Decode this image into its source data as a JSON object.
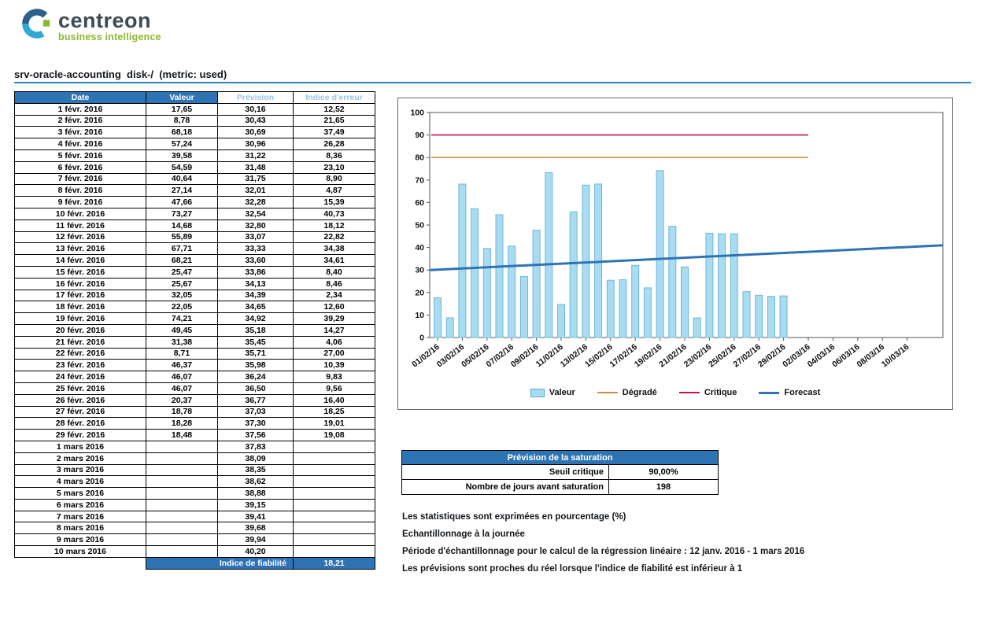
{
  "logo": {
    "brand": "centreon",
    "tagline": "business intelligence"
  },
  "header": {
    "title": "srv-oracle-accounting  disk-/  (metric: used)"
  },
  "colors": {
    "header_blue": "#2E74B5",
    "light_header_text": "#9DC3E6",
    "title_rule": "#2F83B5",
    "bar_fill": "#A9DCF0",
    "bar_stroke": "#6FB7DA",
    "degrade": "#C9913D",
    "critique": "#C0134F",
    "forecast": "#2E74B5",
    "logo_green": "#8CB92E"
  },
  "forecast_table": {
    "headers": [
      "Date",
      "Valeur",
      "Prévision",
      "Indice d'erreur"
    ],
    "rows": [
      [
        "1 févr. 2016",
        "17,65",
        "30,16",
        "12,52"
      ],
      [
        "2 févr. 2016",
        "8,78",
        "30,43",
        "21,65"
      ],
      [
        "3 févr. 2016",
        "68,18",
        "30,69",
        "37,49"
      ],
      [
        "4 févr. 2016",
        "57,24",
        "30,96",
        "26,28"
      ],
      [
        "5 févr. 2016",
        "39,58",
        "31,22",
        "8,36"
      ],
      [
        "6 févr. 2016",
        "54,59",
        "31,48",
        "23,10"
      ],
      [
        "7 févr. 2016",
        "40,64",
        "31,75",
        "8,90"
      ],
      [
        "8 févr. 2016",
        "27,14",
        "32,01",
        "4,87"
      ],
      [
        "9 févr. 2016",
        "47,66",
        "32,28",
        "15,39"
      ],
      [
        "10 févr. 2016",
        "73,27",
        "32,54",
        "40,73"
      ],
      [
        "11 févr. 2016",
        "14,68",
        "32,80",
        "18,12"
      ],
      [
        "12 févr. 2016",
        "55,89",
        "33,07",
        "22,82"
      ],
      [
        "13 févr. 2016",
        "67,71",
        "33,33",
        "34,38"
      ],
      [
        "14 févr. 2016",
        "68,21",
        "33,60",
        "34,61"
      ],
      [
        "15 févr. 2016",
        "25,47",
        "33,86",
        "8,40"
      ],
      [
        "16 févr. 2016",
        "25,67",
        "34,13",
        "8,46"
      ],
      [
        "17 févr. 2016",
        "32,05",
        "34,39",
        "2,34"
      ],
      [
        "18 févr. 2016",
        "22,05",
        "34,65",
        "12,60"
      ],
      [
        "19 févr. 2016",
        "74,21",
        "34,92",
        "39,29"
      ],
      [
        "20 févr. 2016",
        "49,45",
        "35,18",
        "14,27"
      ],
      [
        "21 févr. 2016",
        "31,38",
        "35,45",
        "4,06"
      ],
      [
        "22 févr. 2016",
        "8,71",
        "35,71",
        "27,00"
      ],
      [
        "23 févr. 2016",
        "46,37",
        "35,98",
        "10,39"
      ],
      [
        "24 févr. 2016",
        "46,07",
        "36,24",
        "9,83"
      ],
      [
        "25 févr. 2016",
        "46,07",
        "36,50",
        "9,56"
      ],
      [
        "26 févr. 2016",
        "20,37",
        "36,77",
        "16,40"
      ],
      [
        "27 févr. 2016",
        "18,78",
        "37,03",
        "18,25"
      ],
      [
        "28 févr. 2016",
        "18,28",
        "37,30",
        "19,01"
      ],
      [
        "29 févr. 2016",
        "18,48",
        "37,56",
        "19,08"
      ],
      [
        "1 mars 2016",
        "",
        "37,83",
        ""
      ],
      [
        "2 mars 2016",
        "",
        "38,09",
        ""
      ],
      [
        "3 mars 2016",
        "",
        "38,35",
        ""
      ],
      [
        "4 mars 2016",
        "",
        "38,62",
        ""
      ],
      [
        "5 mars 2016",
        "",
        "38,88",
        ""
      ],
      [
        "6 mars 2016",
        "",
        "39,15",
        ""
      ],
      [
        "7 mars 2016",
        "",
        "39,41",
        ""
      ],
      [
        "8 mars 2016",
        "",
        "39,68",
        ""
      ],
      [
        "9 mars 2016",
        "",
        "39,94",
        ""
      ],
      [
        "10 mars 2016",
        "",
        "40,20",
        ""
      ]
    ],
    "footer_label": "Indice de fiabilité",
    "footer_value": "18,21"
  },
  "chart_data": {
    "type": "bar",
    "title": "",
    "xlabel": "",
    "ylabel": "",
    "ylim": [
      0,
      100
    ],
    "y_tick_step": 10,
    "x_tick_step_days": 2,
    "x_tick_labels": [
      "01/02/16",
      "03/02/16",
      "05/02/16",
      "07/02/16",
      "09/02/16",
      "11/02/16",
      "13/02/16",
      "15/02/16",
      "17/02/16",
      "19/02/16",
      "21/02/16",
      "23/02/16",
      "25/02/16",
      "27/02/16",
      "29/02/16",
      "02/03/16",
      "04/03/16",
      "06/03/16",
      "08/03/16",
      "10/03/16"
    ],
    "series": [
      {
        "name": "Valeur",
        "type": "bar",
        "color": "#A9DCF0",
        "stroke": "#6FB7DA",
        "values": [
          17.65,
          8.78,
          68.18,
          57.24,
          39.58,
          54.59,
          40.64,
          27.14,
          47.66,
          73.27,
          14.68,
          55.89,
          67.71,
          68.21,
          25.47,
          25.67,
          32.05,
          22.05,
          74.21,
          49.45,
          31.38,
          8.71,
          46.37,
          46.07,
          46.07,
          20.37,
          18.78,
          18.28,
          18.48
        ]
      }
    ],
    "thresholds": [
      {
        "name": "Critique",
        "value": 90,
        "color": "#C0134F",
        "span_days": [
          0,
          30
        ]
      },
      {
        "name": "Dégradé",
        "value": 80,
        "color": "#C9913D",
        "span_days": [
          0,
          30
        ]
      }
    ],
    "forecast": {
      "name": "Forecast",
      "color": "#2E74B5",
      "start_value": 30.16,
      "per_day": 0.2642
    },
    "legend": [
      {
        "label": "Valeur",
        "swatch": "box",
        "color": "#A9DCF0",
        "stroke": "#5FA8CC",
        "thickness": 0
      },
      {
        "label": "Dégradé",
        "swatch": "line",
        "color": "#C9913D",
        "thickness": 2
      },
      {
        "label": "Critique",
        "swatch": "line",
        "color": "#C0134F",
        "thickness": 2
      },
      {
        "label": "Forecast",
        "swatch": "line",
        "color": "#2E74B5",
        "thickness": 3
      }
    ],
    "legend_position": "bottom",
    "grid": false
  },
  "saturation": {
    "title": "Prévision de la saturation",
    "rows": [
      [
        "Seuil critique",
        "90,00%"
      ],
      [
        "Nombre de jours avant saturation",
        "198"
      ]
    ]
  },
  "notes": [
    "Les statistiques sont exprimées en pourcentage (%)",
    "Echantillonnage à la journée",
    "Période d'échantillonnage pour le calcul de la régression linéaire : 12 janv. 2016 - 1 mars 2016",
    "Les prévisions sont proches du réel lorsque l'indice de fiabilité est inférieur à 1"
  ]
}
